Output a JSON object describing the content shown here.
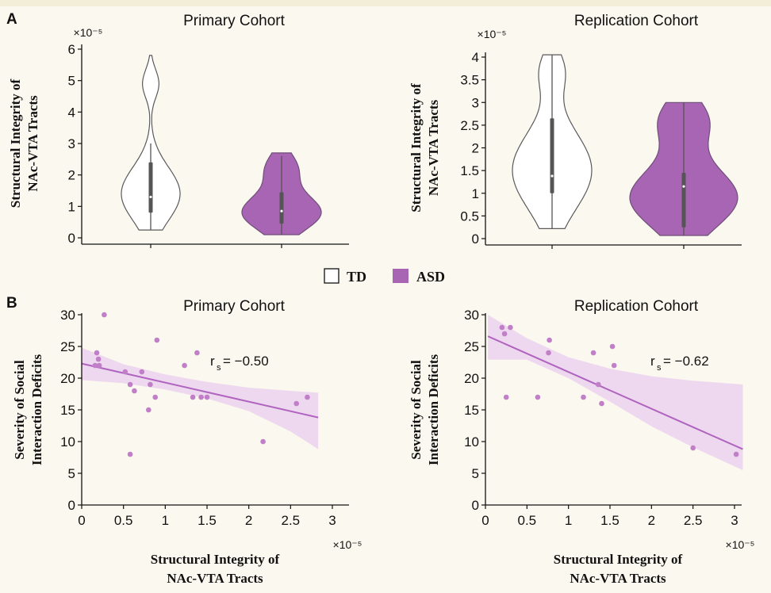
{
  "panels": {
    "a": "A",
    "b": "B"
  },
  "legend": {
    "td": "TD",
    "asd": "ASD"
  },
  "colors": {
    "td_fill": "#ffffff",
    "asd_fill": "#a765b4",
    "asd_edge": "#6f4f78",
    "outline": "#5a5a5a",
    "scatter_point": "#c07fc7",
    "fit_line": "#b064bf",
    "ci_band": "#ecd4ee",
    "box": "#555555"
  },
  "chart_data": [
    {
      "id": "A-primary",
      "type": "violin",
      "title": "Primary Cohort",
      "ylabel": [
        "Structural Integrity of",
        "NAc-VTA Tracts"
      ],
      "y_multiplier": "×10⁻⁵",
      "ylim": [
        0,
        6
      ],
      "yticks": [
        "0",
        "1",
        "2",
        "3",
        "4",
        "5",
        "6"
      ],
      "series": [
        {
          "name": "TD",
          "min": 0.25,
          "max": 5.8,
          "q1": 0.8,
          "median": 1.3,
          "q3": 2.4,
          "whisker_low": 0.25,
          "whisker_high": 3.0
        },
        {
          "name": "ASD",
          "min": 0.1,
          "max": 2.7,
          "q1": 0.45,
          "median": 0.85,
          "q3": 1.45,
          "whisker_low": 0.1,
          "whisker_high": 2.6
        }
      ]
    },
    {
      "id": "A-replication",
      "type": "violin",
      "title": "Replication Cohort",
      "ylabel": [
        "Structural Integrity of",
        "NAc-VTA Tracts"
      ],
      "y_multiplier": "×10⁻⁵",
      "ylim": [
        0,
        4
      ],
      "yticks": [
        "0",
        "0.5",
        "1",
        "1.5",
        "2",
        "2.5",
        "3",
        "3.5",
        "4"
      ],
      "series": [
        {
          "name": "TD",
          "min": 0.22,
          "max": 4.05,
          "q1": 1.0,
          "median": 1.38,
          "q3": 2.65,
          "whisker_low": 0.22,
          "whisker_high": 4.05
        },
        {
          "name": "ASD",
          "min": 0.07,
          "max": 3.0,
          "q1": 0.25,
          "median": 1.15,
          "q3": 1.45,
          "whisker_low": 0.07,
          "whisker_high": 3.0
        }
      ]
    },
    {
      "id": "B-primary",
      "type": "scatter",
      "title": "Primary Cohort",
      "xlabel": [
        "Structural Integrity of",
        "NAc-VTA Tracts"
      ],
      "ylabel": [
        "Severity of Social",
        "Interaction Deficits"
      ],
      "x_multiplier": "×10⁻⁵",
      "xlim": [
        0,
        3
      ],
      "ylim": [
        0,
        30
      ],
      "xticks": [
        "0",
        "0.5",
        "1",
        "1.5",
        "2",
        "2.5",
        "3"
      ],
      "yticks": [
        "0",
        "5",
        "10",
        "15",
        "20",
        "25",
        "30"
      ],
      "annotation": {
        "r": "r",
        "sub": "s",
        "value": " = −0.50"
      },
      "points": [
        [
          0.27,
          30
        ],
        [
          0.9,
          26
        ],
        [
          0.18,
          24
        ],
        [
          1.38,
          24
        ],
        [
          0.2,
          23
        ],
        [
          0.16,
          22
        ],
        [
          0.21,
          22
        ],
        [
          1.23,
          22
        ],
        [
          0.52,
          21
        ],
        [
          0.72,
          21
        ],
        [
          0.58,
          19
        ],
        [
          0.82,
          19
        ],
        [
          0.63,
          18
        ],
        [
          0.88,
          17
        ],
        [
          1.33,
          17
        ],
        [
          1.43,
          17
        ],
        [
          1.5,
          17
        ],
        [
          2.7,
          17
        ],
        [
          0.8,
          15
        ],
        [
          2.57,
          16
        ],
        [
          2.17,
          10
        ],
        [
          0.58,
          8
        ]
      ],
      "fit": {
        "x": [
          0,
          2.83
        ],
        "y": [
          22.3,
          13.8
        ]
      },
      "ci": {
        "x": [
          0,
          0.5,
          1,
          1.5,
          2,
          2.5,
          2.83
        ],
        "upper": [
          24.8,
          22.2,
          20.6,
          19.4,
          18.5,
          18.0,
          17.7
        ],
        "lower": [
          19.7,
          19.2,
          18.2,
          16.8,
          14.8,
          11.6,
          8.8
        ]
      }
    },
    {
      "id": "B-replication",
      "type": "scatter",
      "title": "Replication Cohort",
      "xlabel": [
        "Structural Integrity of",
        "NAc-VTA Tracts"
      ],
      "ylabel": [
        "Severity of Social",
        "Interaction Deficits"
      ],
      "x_multiplier": "×10⁻⁵",
      "xlim": [
        0,
        3
      ],
      "ylim": [
        0,
        30
      ],
      "xticks": [
        "0",
        "0.5",
        "1",
        "1.5",
        "2",
        "2.5",
        "3"
      ],
      "yticks": [
        "0",
        "5",
        "10",
        "15",
        "20",
        "25",
        "30"
      ],
      "annotation": {
        "r": "r",
        "sub": "s",
        "value": " = −0.62"
      },
      "points": [
        [
          0.2,
          28
        ],
        [
          0.3,
          28
        ],
        [
          0.23,
          27
        ],
        [
          0.77,
          26
        ],
        [
          1.3,
          24
        ],
        [
          0.76,
          24
        ],
        [
          1.53,
          25
        ],
        [
          1.55,
          22
        ],
        [
          1.36,
          19
        ],
        [
          0.25,
          17
        ],
        [
          0.63,
          17
        ],
        [
          1.18,
          17
        ],
        [
          1.4,
          16
        ],
        [
          2.5,
          9
        ],
        [
          3.02,
          8
        ]
      ],
      "fit": {
        "x": [
          0.03,
          3.1
        ],
        "y": [
          26.6,
          8.8
        ]
      },
      "ci": {
        "x": [
          0.03,
          0.5,
          1,
          1.5,
          2,
          2.5,
          3.1
        ],
        "upper": [
          30.0,
          26.3,
          23.3,
          21.5,
          20.3,
          19.6,
          19.0
        ],
        "lower": [
          22.9,
          22.9,
          20.0,
          16.3,
          12.4,
          9.1,
          5.5
        ]
      }
    }
  ]
}
